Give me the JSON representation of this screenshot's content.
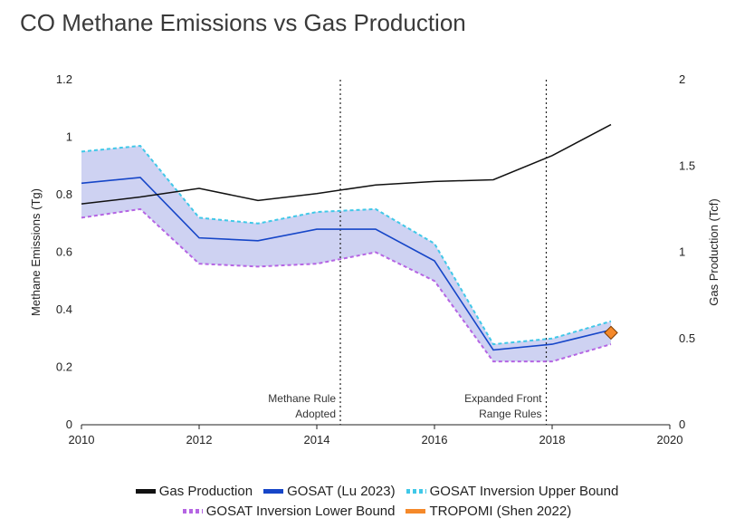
{
  "title": "CO Methane Emissions vs Gas Production",
  "colors": {
    "gas": "#111111",
    "gosat": "#1646c8",
    "upper": "#40c8e8",
    "lower": "#b565e3",
    "band": "#c5caf0",
    "tropomi": "#f5892a"
  },
  "chart_data": {
    "type": "line",
    "title": "CO Methane Emissions vs Gas Production",
    "xlabel": "",
    "ylabel": "Methane Emissions (Tg)",
    "y2label": "Gas Production (Tcf)",
    "xlim": [
      2010,
      2020
    ],
    "ylim": [
      0,
      1.2
    ],
    "y2lim": [
      0,
      2
    ],
    "x_ticks": [
      "2010",
      "2012",
      "2014",
      "2016",
      "2018",
      "2020"
    ],
    "y_ticks": [
      "0",
      "0.2",
      "0.4",
      "0.6",
      "0.8",
      "1",
      "1.2"
    ],
    "y2_ticks": [
      "0",
      "0.5",
      "1",
      "1.5",
      "2"
    ],
    "series": [
      {
        "name": "Gas Production",
        "axis": "right",
        "x": [
          2010,
          2011,
          2012,
          2013,
          2014,
          2015,
          2016,
          2017,
          2018,
          2019
        ],
        "values": [
          1.28,
          1.32,
          1.37,
          1.3,
          1.34,
          1.39,
          1.41,
          1.42,
          1.56,
          1.74
        ]
      },
      {
        "name": "GOSAT (Lu 2023)",
        "axis": "left",
        "x": [
          2010,
          2011,
          2012,
          2013,
          2014,
          2015,
          2016,
          2017,
          2018,
          2019
        ],
        "values": [
          0.84,
          0.86,
          0.65,
          0.64,
          0.68,
          0.68,
          0.57,
          0.26,
          0.28,
          0.33
        ]
      },
      {
        "name": "GOSAT Inversion Upper Bound",
        "axis": "left",
        "x": [
          2010,
          2011,
          2012,
          2013,
          2014,
          2015,
          2016,
          2017,
          2018,
          2019
        ],
        "values": [
          0.95,
          0.97,
          0.72,
          0.7,
          0.74,
          0.75,
          0.63,
          0.28,
          0.3,
          0.36
        ]
      },
      {
        "name": "GOSAT Inversion Lower Bound",
        "axis": "left",
        "x": [
          2010,
          2011,
          2012,
          2013,
          2014,
          2015,
          2016,
          2017,
          2018,
          2019
        ],
        "values": [
          0.72,
          0.75,
          0.56,
          0.55,
          0.56,
          0.6,
          0.5,
          0.22,
          0.22,
          0.28
        ]
      },
      {
        "name": "TROPOMI (Shen 2022)",
        "axis": "left",
        "x": [
          2019
        ],
        "values": [
          0.32
        ]
      }
    ],
    "vlines": [
      {
        "x": 2014.4,
        "label": [
          "Methane Rule",
          "Adopted"
        ]
      },
      {
        "x": 2017.9,
        "label": [
          "Expanded Front",
          "Range Rules"
        ]
      }
    ],
    "legend_position": "bottom"
  },
  "legend": {
    "row1": [
      "Gas Production",
      "GOSAT (Lu 2023)",
      "GOSAT Inversion Upper Bound"
    ],
    "row2": [
      "GOSAT Inversion Lower Bound",
      "TROPOMI (Shen 2022)"
    ]
  }
}
